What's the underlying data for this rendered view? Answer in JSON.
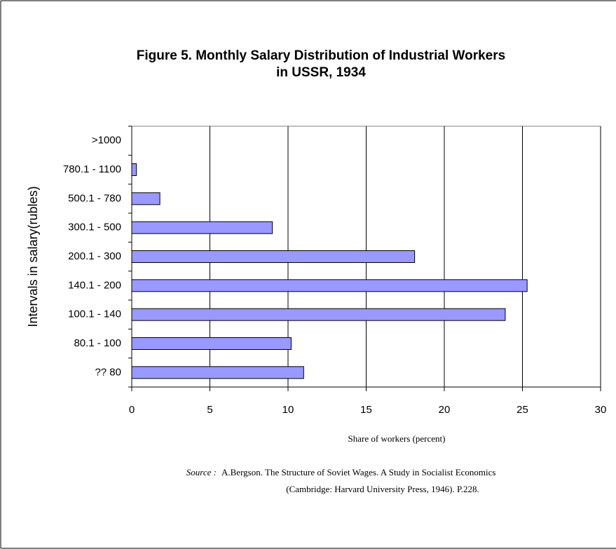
{
  "chart_data": {
    "type": "bar",
    "orientation": "horizontal",
    "title": [
      "Figure 5. Monthly Salary Distribution of Industrial Workers",
      "in USSR, 1934"
    ],
    "categories": [
      "?? 80",
      "80.1 - 100",
      "100.1 - 140",
      "140.1 - 200",
      "200.1 - 300",
      "300.1 - 500",
      "500.1 - 780",
      "780.1 - 1100",
      ">1000"
    ],
    "values": [
      11.0,
      10.2,
      23.9,
      25.3,
      18.1,
      9.0,
      1.8,
      0.3,
      0
    ],
    "color": "#9999ff",
    "xlim": [
      0,
      30
    ],
    "xticks": [
      0,
      5,
      10,
      15,
      20,
      25,
      30
    ],
    "grid": true,
    "x_label": "Share of workers (percent)",
    "y_label": "Intervals in salary(rubles)",
    "source_label": "Source :",
    "source": [
      "A.Bergson. The Structure of Soviet Wages. A Study in Socialist Economics",
      "(Cambridge: Harvard University Press, 1946). P.228."
    ]
  }
}
